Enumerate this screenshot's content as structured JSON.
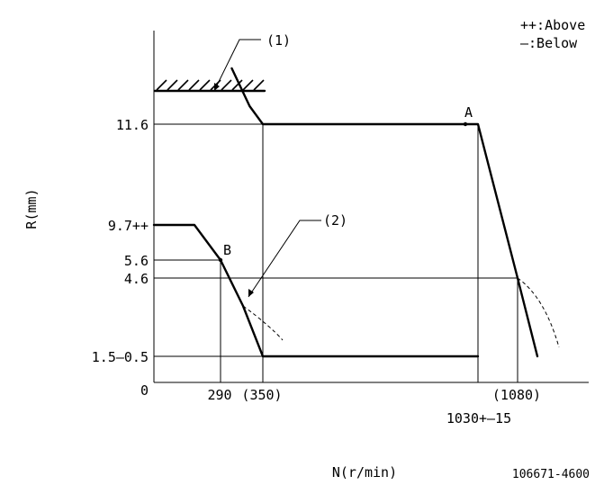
{
  "legend": {
    "above": "++:Above",
    "below": "—:Below"
  },
  "drawing_number": "106671-4600",
  "chart_data": {
    "type": "line",
    "title": "",
    "xlabel": "N(r/min)",
    "ylabel": "R(mm)",
    "x_ticks": [
      {
        "value": 290,
        "label": "290"
      },
      {
        "value": 350,
        "label": "(350)"
      },
      {
        "value": 1030,
        "label": "1030+–15"
      },
      {
        "value": 1080,
        "label": "(1080)"
      }
    ],
    "y_ticks": [
      {
        "value": 0,
        "label": "0"
      },
      {
        "value": 1.5,
        "label": "1.5–0.5"
      },
      {
        "value": 4.6,
        "label": "4.6"
      },
      {
        "value": 5.6,
        "label": "5.6"
      },
      {
        "value": 9.7,
        "label": "9.7++"
      },
      {
        "value": 11.6,
        "label": "11.6"
      }
    ],
    "points": [
      {
        "name": "A",
        "x": 1015,
        "y": 11.6
      },
      {
        "name": "B",
        "x": 290,
        "y": 5.6
      }
    ],
    "annotations": [
      {
        "label": "(1)"
      },
      {
        "label": "(2)"
      }
    ],
    "series": [
      {
        "kind": "upper",
        "x": [
          305,
          330,
          350,
          1030,
          1080,
          1110
        ],
        "y": [
          13.5,
          12.6,
          11.6,
          11.6,
          4.6,
          1.5
        ]
      },
      {
        "kind": "lower",
        "x": [
          200,
          255,
          290,
          320,
          350,
          1030
        ],
        "y": [
          9.7,
          9.7,
          5.6,
          3.7,
          1.5,
          1.5
        ]
      }
    ],
    "legend_placement": "top-right",
    "grid": false
  }
}
